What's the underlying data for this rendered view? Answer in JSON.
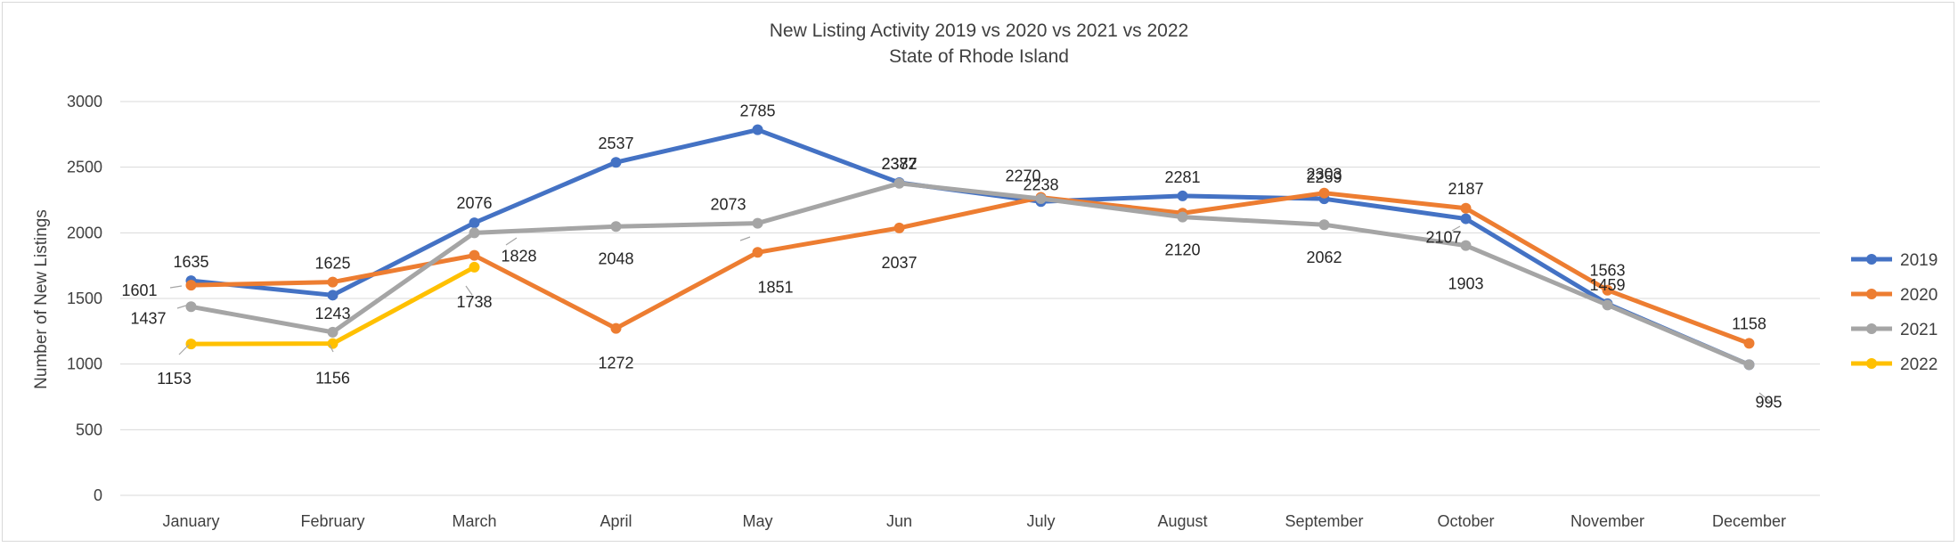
{
  "chart_data": {
    "type": "line",
    "title": "New Listing Activity 2019 vs 2020 vs 2021 vs 2022",
    "subtitle": "State of Rhode Island",
    "xlabel": "",
    "ylabel": "Number of New Listings",
    "ylim": [
      0,
      3000
    ],
    "yticks": [
      0,
      500,
      1000,
      1500,
      2000,
      2500,
      3000
    ],
    "grid": true,
    "legend_position": "right",
    "categories": [
      "January",
      "February",
      "March",
      "April",
      "May",
      "Jun",
      "July",
      "August",
      "September",
      "October",
      "November",
      "December"
    ],
    "series": [
      {
        "name": "2019",
        "color": "#4472C4",
        "values": [
          1635,
          1525,
          2076,
          2537,
          2785,
          2382,
          2238,
          2281,
          2259,
          2107,
          1459,
          995
        ],
        "labels": [
          "1635",
          null,
          "2076",
          "2537",
          "2785",
          "2382",
          "2238",
          "2281",
          "2259",
          "2107",
          "1459",
          null
        ]
      },
      {
        "name": "2020",
        "color": "#ED7D31",
        "values": [
          1601,
          1625,
          1828,
          1272,
          1851,
          2037,
          2270,
          2150,
          2303,
          2187,
          1563,
          1158
        ],
        "labels": [
          "1601",
          "1625",
          "1828",
          "1272",
          "1851",
          "2037",
          "2270",
          null,
          "2303",
          "2187",
          "1563",
          "1158"
        ]
      },
      {
        "name": "2021",
        "color": "#A5A5A5",
        "values": [
          1437,
          1243,
          2000,
          2048,
          2073,
          2377,
          2260,
          2120,
          2062,
          1903,
          1450,
          995
        ],
        "labels": [
          "1437",
          "1243",
          null,
          "2048",
          "2073",
          "2377",
          null,
          "2120",
          "2062",
          "1903",
          null,
          "995"
        ]
      },
      {
        "name": "2022",
        "color": "#FFC000",
        "values": [
          1153,
          1156,
          1738,
          null,
          null,
          null,
          null,
          null,
          null,
          null,
          null,
          null
        ],
        "labels": [
          "1153",
          "1156",
          "1738",
          null,
          null,
          null,
          null,
          null,
          null,
          null,
          null,
          null
        ]
      }
    ]
  }
}
